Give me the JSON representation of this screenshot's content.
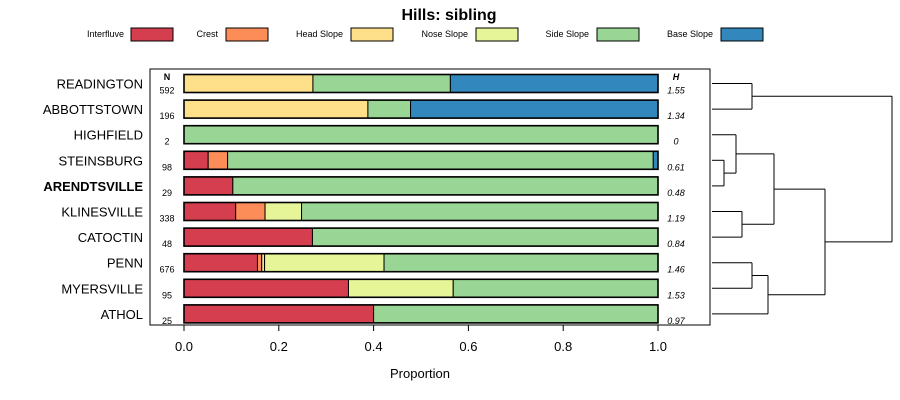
{
  "chart_data": {
    "type": "bar",
    "orientation": "horizontal",
    "stacked": true,
    "title": "Hills: sibling",
    "xlabel": "Proportion",
    "ylabel": "",
    "xlim": [
      0,
      1
    ],
    "x_ticks": [
      "0.0",
      "0.2",
      "0.4",
      "0.6",
      "0.8",
      "1.0"
    ],
    "n_header": "N",
    "h_header": "H",
    "legend_position": "top",
    "legend": [
      {
        "name": "Interfluve",
        "color": "#d53e4f"
      },
      {
        "name": "Crest",
        "color": "#fc8d59"
      },
      {
        "name": "Head Slope",
        "color": "#fee08b"
      },
      {
        "name": "Nose Slope",
        "color": "#e6f598"
      },
      {
        "name": "Side Slope",
        "color": "#99d594"
      },
      {
        "name": "Base Slope",
        "color": "#3288bd"
      }
    ],
    "rows": [
      {
        "name": "READINGTON",
        "bold": false,
        "n": "592",
        "h": "1.55",
        "values": [
          0,
          0,
          0.272,
          0,
          0.29,
          0.438
        ]
      },
      {
        "name": "ABBOTTSTOWN",
        "bold": false,
        "n": "196",
        "h": "1.34",
        "values": [
          0,
          0,
          0.388,
          0,
          0.09,
          0.522
        ]
      },
      {
        "name": "HIGHFIELD",
        "bold": false,
        "n": "2",
        "h": "0",
        "values": [
          0,
          0,
          0,
          0,
          1.0,
          0
        ]
      },
      {
        "name": "STEINSBURG",
        "bold": false,
        "n": "98",
        "h": "0.61",
        "values": [
          0.051,
          0.041,
          0,
          0,
          0.898,
          0.01
        ]
      },
      {
        "name": "ARENDTSVILLE",
        "bold": true,
        "n": "29",
        "h": "0.48",
        "values": [
          0.103,
          0,
          0,
          0,
          0.897,
          0
        ]
      },
      {
        "name": "KLINESVILLE",
        "bold": false,
        "n": "338",
        "h": "1.19",
        "values": [
          0.109,
          0.062,
          0,
          0.077,
          0.752,
          0
        ]
      },
      {
        "name": "CATOCTIN",
        "bold": false,
        "n": "48",
        "h": "0.84",
        "values": [
          0.271,
          0,
          0,
          0,
          0.729,
          0
        ]
      },
      {
        "name": "PENN",
        "bold": false,
        "n": "676",
        "h": "1.46",
        "values": [
          0.155,
          0.009,
          0.006,
          0.252,
          0.578,
          0
        ]
      },
      {
        "name": "MYERSVILLE",
        "bold": false,
        "n": "95",
        "h": "1.53",
        "values": [
          0.347,
          0,
          0,
          0.221,
          0.432,
          0
        ]
      },
      {
        "name": "ATHOL",
        "bold": false,
        "n": "25",
        "h": "0.97",
        "values": [
          0.4,
          0,
          0,
          0,
          0.6,
          0
        ]
      }
    ],
    "dendrogram": "((READINGTON, ABBOTTSTOWN), (((HIGHFIELD, (STEINSBURG, ARENDTSVILLE)), (KLINESVILLE, CATOCTIN)), ((PENN, MYERSVILLE), ATHOL)))"
  }
}
